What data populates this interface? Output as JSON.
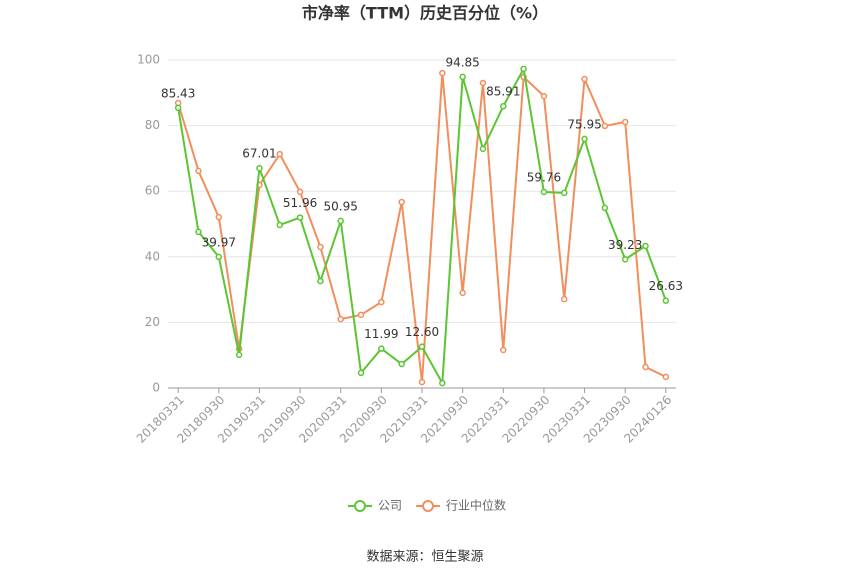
{
  "chart_data": {
    "type": "line",
    "title": "市净率（TTM）历史百分位（%）",
    "source": "数据来源：恒生聚源",
    "categories": [
      "20180331",
      null,
      "20180930",
      null,
      "20190331",
      null,
      "20190930",
      null,
      "20200331",
      null,
      "20200930",
      null,
      "20210331",
      null,
      "20210930",
      null,
      "20220331",
      null,
      "20220930",
      null,
      "20230331",
      null,
      "20230930",
      null,
      "20240126"
    ],
    "series": [
      {
        "name": "公司",
        "color": "#5cc534",
        "values": [
          85.43,
          47.6,
          39.97,
          10.1,
          67.01,
          49.7,
          51.96,
          32.6,
          50.95,
          4.6,
          11.99,
          7.3,
          12.6,
          1.5,
          94.85,
          72.9,
          85.91,
          97.3,
          59.76,
          59.5,
          75.95,
          54.9,
          39.23,
          43.3,
          26.63
        ],
        "value_labels": [
          "85.43",
          null,
          "39.97",
          null,
          "67.01",
          null,
          "51.96",
          null,
          "50.95",
          null,
          "11.99",
          null,
          "12.60",
          null,
          "94.85",
          null,
          "85.91",
          null,
          "59.76",
          null,
          "75.95",
          null,
          "39.23",
          null,
          "26.63"
        ]
      },
      {
        "name": "行业中位数",
        "color": "#f28e5c",
        "values": [
          86.9,
          66.2,
          52.1,
          11.9,
          61.9,
          71.3,
          59.8,
          43.0,
          21.0,
          22.3,
          26.2,
          56.7,
          1.8,
          96.0,
          29.0,
          93.0,
          11.6,
          94.8,
          89.0,
          27.1,
          94.2,
          79.9,
          81.1,
          6.4,
          3.4
        ]
      }
    ],
    "ylim": [
      0,
      100
    ],
    "yticks": [
      0,
      20,
      40,
      60,
      80,
      100
    ],
    "grid": true,
    "legend": "bottom"
  }
}
